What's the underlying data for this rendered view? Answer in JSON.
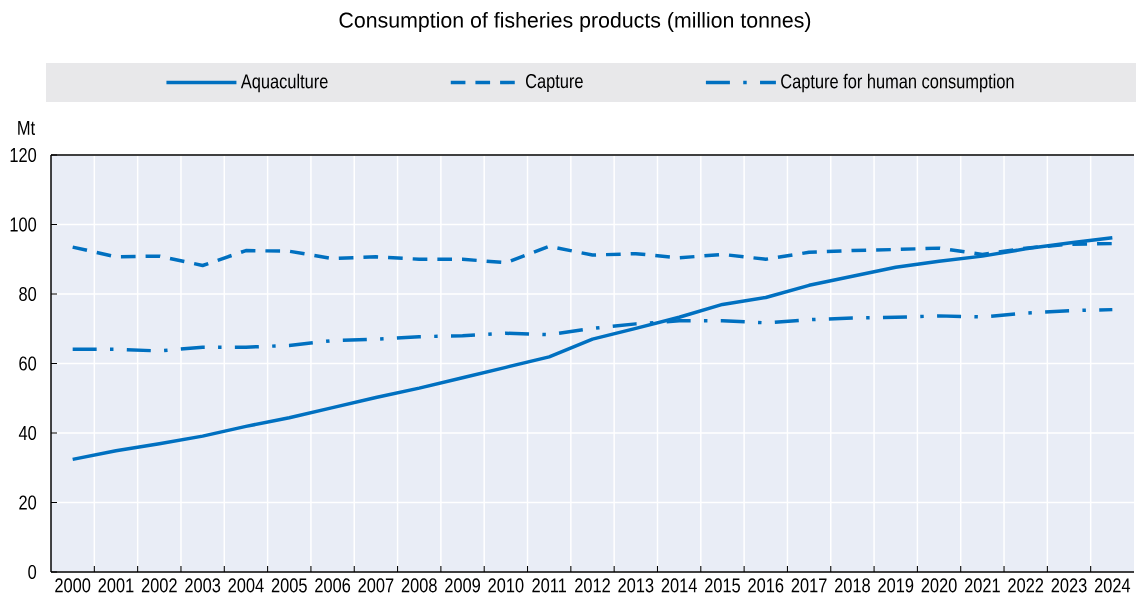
{
  "chart_data": {
    "type": "line",
    "title": "Consumption of fisheries products (million tonnes)",
    "ylabel": "Mt",
    "categories": [
      "2000",
      "2001",
      "2002",
      "2003",
      "2004",
      "2005",
      "2006",
      "2007",
      "2008",
      "2009",
      "2010",
      "2011",
      "2012",
      "2013",
      "2014",
      "2015",
      "2016",
      "2017",
      "2018",
      "2019",
      "2020",
      "2021",
      "2022",
      "2023",
      "2024"
    ],
    "series": [
      {
        "name": "Aquaculture",
        "color": "#0070c0",
        "line_style": "solid",
        "values": [
          32.4,
          34.9,
          36.9,
          39.1,
          41.9,
          44.4,
          47.3,
          50.2,
          52.9,
          55.9,
          58.9,
          61.9,
          67.0,
          70.1,
          73.3,
          77.0,
          79.0,
          82.5,
          85.1,
          87.7,
          89.4,
          90.9,
          93.0,
          94.7,
          96.2
        ]
      },
      {
        "name": "Capture",
        "color": "#0070c0",
        "line_style": "dashed",
        "values": [
          93.5,
          90.7,
          90.9,
          88.2,
          92.5,
          92.3,
          90.2,
          90.7,
          90.0,
          90.0,
          89.0,
          93.7,
          91.2,
          91.6,
          90.4,
          91.4,
          90.0,
          92.0,
          92.5,
          92.8,
          93.2,
          91.4,
          93.2,
          94.3,
          94.5
        ]
      },
      {
        "name": "Capture for human consumption",
        "color": "#0070c0",
        "line_style": "dashdot",
        "values": [
          64.1,
          64.1,
          63.6,
          64.7,
          64.7,
          65.2,
          66.6,
          67.0,
          67.7,
          68.0,
          68.7,
          68.3,
          70.1,
          71.4,
          72.3,
          72.3,
          71.7,
          72.6,
          73.1,
          73.3,
          73.7,
          73.4,
          74.5,
          75.2,
          75.5
        ]
      }
    ],
    "ylim": [
      0,
      120
    ],
    "yticks": [
      0,
      20,
      40,
      60,
      80,
      100,
      120
    ],
    "grid": true,
    "legend": "top"
  }
}
